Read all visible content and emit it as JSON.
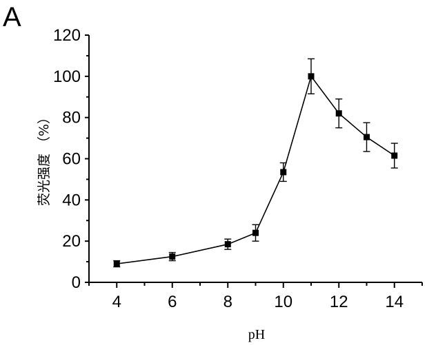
{
  "panel_label": "A",
  "chart_data": {
    "type": "line",
    "xlabel": "pH",
    "ylabel": "荧光强度 （%）",
    "xlim": [
      3,
      15
    ],
    "ylim": [
      0,
      120
    ],
    "x_ticks": [
      4,
      6,
      8,
      10,
      12,
      14
    ],
    "y_ticks": [
      0,
      20,
      40,
      60,
      80,
      100,
      120
    ],
    "grid": false,
    "marker": "square",
    "series": [
      {
        "x": [
          4,
          6,
          8,
          9,
          10,
          11,
          12,
          13,
          14
        ],
        "y": [
          9,
          12.5,
          18.5,
          24,
          53.5,
          100,
          82,
          70.5,
          61.5
        ],
        "error": [
          1.5,
          2,
          2.5,
          4,
          4.5,
          8.5,
          7,
          7,
          6
        ]
      }
    ]
  }
}
